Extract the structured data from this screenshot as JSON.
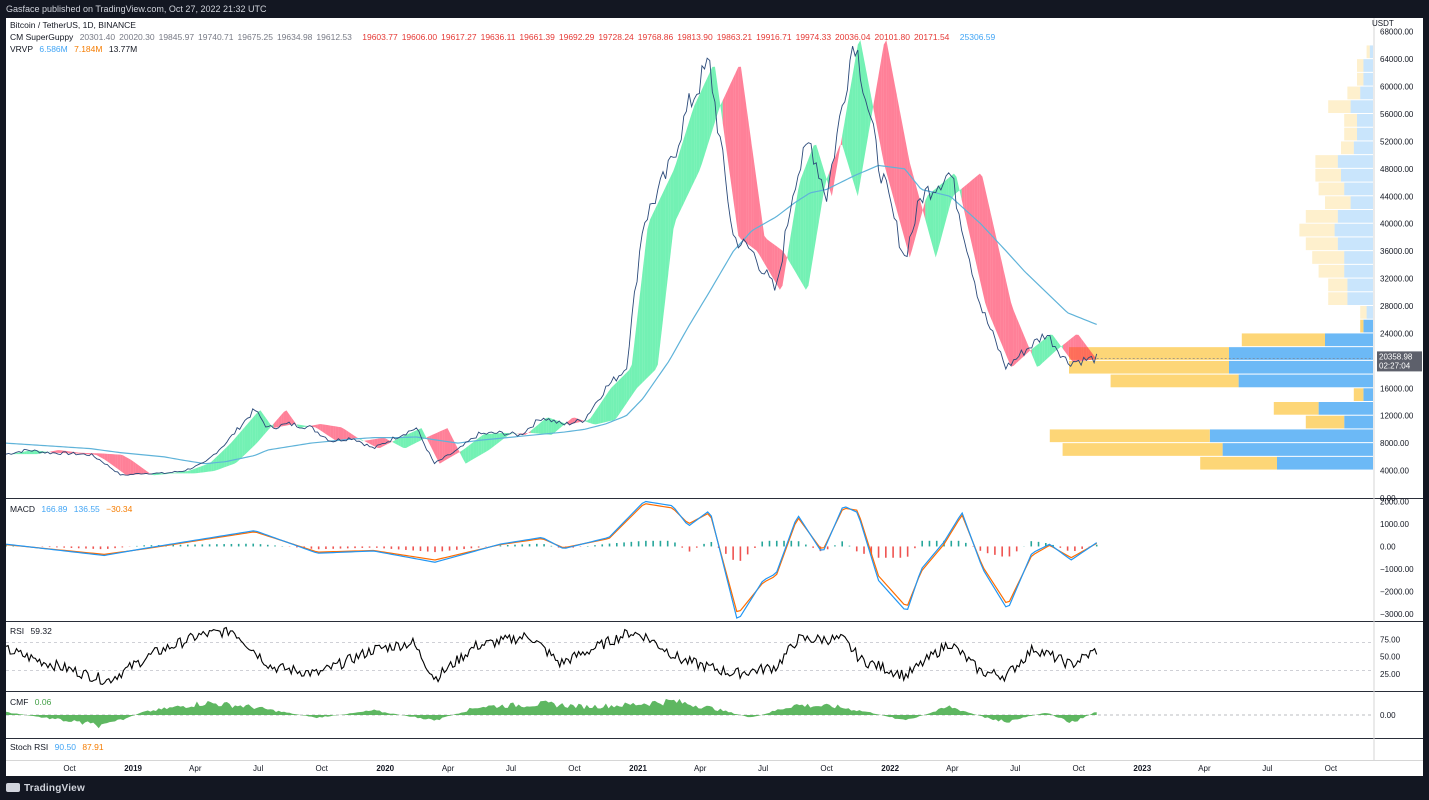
{
  "header": {
    "published": "Gasface published on TradingView.com, Oct 27, 2022 21:32 UTC"
  },
  "footer": {
    "brand": "TradingView"
  },
  "colors": {
    "background": "#131722",
    "price": "#2962ff",
    "ma": "#5fb3d9",
    "guppy_green": "#00e676",
    "guppy_red": "#ff1744",
    "vp_up": "#64b5f6",
    "vp_down": "#fdd470",
    "macd": "#2196f3",
    "signal": "#ff6d00",
    "rsi": "#000000",
    "cmf": "#4caf50"
  },
  "legend": {
    "symbol": "Bitcoin / TetherUS, 1D, BINANCE",
    "guppy_name": "CM SuperGuppy",
    "guppy_values_grey": [
      "20301.40",
      "20020.30",
      "19845.97",
      "19740.71",
      "19675.25",
      "19634.98",
      "19612.53"
    ],
    "guppy_values_red": [
      "19603.77",
      "19606.00",
      "19617.27",
      "19636.11",
      "19661.39",
      "19692.29",
      "19728.24",
      "19768.86",
      "19813.90",
      "19863.21",
      "19916.71",
      "19974.33",
      "20036.04",
      "20101.80",
      "20171.54"
    ],
    "guppy_value_blue": "25306.59",
    "vrvp_name": "VRVP",
    "vrvp_up": "6.586M",
    "vrvp_down": "7.184M",
    "vrvp_total": "13.77M",
    "macd_name": "MACD",
    "macd_v1": "166.89",
    "macd_v2": "136.55",
    "macd_v3": "−30.34",
    "rsi_name": "RSI",
    "rsi_v": "59.32",
    "cmf_name": "CMF",
    "cmf_v": "0.06",
    "stoch_name": "Stoch RSI",
    "stoch_k": "90.50",
    "stoch_d": "87.91"
  },
  "price_axis": {
    "currency": "USDT",
    "labels": [
      "68000.00",
      "64000.00",
      "60000.00",
      "56000.00",
      "52000.00",
      "48000.00",
      "44000.00",
      "40000.00",
      "36000.00",
      "32000.00",
      "28000.00",
      "24000.00",
      "16000.00",
      "12000.00",
      "8000.00",
      "4000.00",
      "0.00"
    ],
    "current_price": "20358.98",
    "countdown": "02:27:04"
  },
  "macd_axis": {
    "labels": [
      "2000.00",
      "1000.00",
      "0.00",
      "−1000.00",
      "−2000.00",
      "−3000.00"
    ]
  },
  "rsi_axis": {
    "labels": [
      "75.00",
      "50.00",
      "25.00"
    ]
  },
  "cmf_axis": {
    "labels": [
      "0.00"
    ]
  },
  "time_axis": {
    "labels": [
      "Oct",
      "2019",
      "Apr",
      "Jul",
      "Oct",
      "2020",
      "Apr",
      "Jul",
      "Oct",
      "2021",
      "Apr",
      "Jul",
      "Oct",
      "2022",
      "Apr",
      "Jul",
      "Oct",
      "2023",
      "Apr",
      "Jul",
      "Oct"
    ]
  },
  "chart_data": {
    "type": "line",
    "title": "Bitcoin / TetherUS, 1D, BINANCE",
    "x_range": [
      "2018-07-01",
      "2023-12-01"
    ],
    "price": {
      "ylim": [
        0,
        70000
      ],
      "dates": [
        "2018-07-01",
        "2018-08-01",
        "2018-09-01",
        "2018-10-01",
        "2018-11-01",
        "2018-11-15",
        "2018-12-15",
        "2019-01-15",
        "2019-02-15",
        "2019-03-15",
        "2019-04-15",
        "2019-05-15",
        "2019-06-26",
        "2019-07-15",
        "2019-08-15",
        "2019-09-15",
        "2019-10-15",
        "2019-11-15",
        "2019-12-15",
        "2020-01-15",
        "2020-02-15",
        "2020-03-12",
        "2020-04-15",
        "2020-05-15",
        "2020-06-15",
        "2020-07-15",
        "2020-08-15",
        "2020-09-15",
        "2020-10-15",
        "2020-11-15",
        "2020-12-15",
        "2021-01-08",
        "2021-02-15",
        "2021-03-15",
        "2021-04-14",
        "2021-05-19",
        "2021-06-15",
        "2021-07-20",
        "2021-08-15",
        "2021-09-07",
        "2021-10-01",
        "2021-11-10",
        "2021-12-15",
        "2022-01-22",
        "2022-02-15",
        "2022-03-29",
        "2022-05-12",
        "2022-06-18",
        "2022-07-15",
        "2022-08-15",
        "2022-09-15",
        "2022-10-27"
      ],
      "close": [
        6400,
        7000,
        6600,
        6500,
        6300,
        5500,
        3300,
        3600,
        3600,
        3950,
        5100,
        8000,
        12900,
        10200,
        10800,
        10300,
        8300,
        8800,
        7200,
        8800,
        10200,
        5000,
        7000,
        9300,
        9500,
        9200,
        11800,
        10700,
        11400,
        16000,
        19000,
        40000,
        48000,
        57000,
        63500,
        38000,
        36000,
        30000,
        46000,
        52000,
        44000,
        67500,
        49000,
        35000,
        44000,
        47500,
        28000,
        19000,
        21500,
        24000,
        19800,
        20358.98
      ],
      "ma200": [
        8000,
        7800,
        7600,
        7400,
        7200,
        7000,
        6600,
        6300,
        6000,
        5500,
        5000,
        5300,
        6200,
        7000,
        7500,
        8000,
        8300,
        8600,
        8800,
        8800,
        8900,
        8500,
        8000,
        8400,
        8700,
        9000,
        9300,
        9600,
        10000,
        10800,
        12000,
        14500,
        20000,
        25000,
        30000,
        36000,
        39000,
        41000,
        43000,
        44500,
        45000,
        47000,
        48500,
        48000,
        45000,
        44000,
        40000,
        36000,
        33000,
        30000,
        27000,
        25306.59
      ]
    },
    "volume_profile": {
      "ranges": [
        [
          0,
          4000
        ],
        [
          4000,
          6000
        ],
        [
          6000,
          8000
        ],
        [
          8000,
          10000
        ],
        [
          10000,
          12000
        ],
        [
          12000,
          14000
        ],
        [
          14000,
          16000
        ],
        [
          16000,
          18000
        ],
        [
          18000,
          20000
        ],
        [
          20000,
          22000
        ],
        [
          22000,
          24000
        ],
        [
          24000,
          26000
        ],
        [
          26000,
          28000
        ],
        [
          28000,
          30000
        ],
        [
          30000,
          32000
        ],
        [
          32000,
          34000
        ],
        [
          34000,
          36000
        ],
        [
          36000,
          38000
        ],
        [
          38000,
          40000
        ],
        [
          40000,
          42000
        ],
        [
          42000,
          44000
        ],
        [
          44000,
          46000
        ],
        [
          46000,
          48000
        ],
        [
          48000,
          50000
        ],
        [
          50000,
          52000
        ],
        [
          52000,
          54000
        ],
        [
          54000,
          56000
        ],
        [
          56000,
          58000
        ],
        [
          58000,
          60000
        ],
        [
          60000,
          62000
        ],
        [
          62000,
          64000
        ],
        [
          64000,
          66000
        ]
      ],
      "up": [
        0,
        0.3,
        0.47,
        0.51,
        0.09,
        0.17,
        0.03,
        0.42,
        0.45,
        0.45,
        0.15,
        0.03,
        0.02,
        0.08,
        0.08,
        0.09,
        0.09,
        0.11,
        0.12,
        0.11,
        0.07,
        0.09,
        0.1,
        0.11,
        0.06,
        0.05,
        0.05,
        0.07,
        0.04,
        0.03,
        0.03,
        0.01
      ],
      "down": [
        0,
        0.24,
        0.5,
        0.5,
        0.12,
        0.14,
        0.03,
        0.4,
        0.5,
        0.5,
        0.26,
        0.01,
        0.02,
        0.06,
        0.06,
        0.08,
        0.1,
        0.1,
        0.11,
        0.1,
        0.08,
        0.08,
        0.08,
        0.07,
        0.04,
        0.04,
        0.04,
        0.07,
        0.04,
        0.02,
        0.02,
        0.01
      ]
    },
    "macd": {
      "ylim": [
        -3300,
        2100
      ],
      "dates": [
        "2018-07-01",
        "2018-11-20",
        "2019-01-15",
        "2019-06-26",
        "2019-09-25",
        "2019-12-15",
        "2020-03-13",
        "2020-06-15",
        "2020-08-15",
        "2020-09-15",
        "2020-11-20",
        "2021-01-10",
        "2021-02-20",
        "2021-03-15",
        "2021-04-15",
        "2021-05-25",
        "2021-07-01",
        "2021-07-20",
        "2021-08-20",
        "2021-09-25",
        "2021-10-25",
        "2021-11-15",
        "2021-12-15",
        "2022-01-25",
        "2022-02-15",
        "2022-03-20",
        "2022-04-15",
        "2022-05-15",
        "2022-06-20",
        "2022-07-25",
        "2022-08-20",
        "2022-09-20",
        "2022-10-27"
      ],
      "macd": [
        100,
        -400,
        -100,
        700,
        -300,
        -200,
        -700,
        100,
        400,
        -100,
        400,
        2000,
        1800,
        900,
        1600,
        -3300,
        -1500,
        -1200,
        1400,
        -300,
        1800,
        1500,
        -1500,
        -2900,
        -1000,
        200,
        1500,
        -1000,
        -2800,
        -300,
        100,
        -600,
        166.89
      ],
      "signal": [
        80,
        -350,
        -120,
        650,
        -250,
        -180,
        -600,
        80,
        350,
        -60,
        350,
        1900,
        1700,
        1000,
        1500,
        -3000,
        -1600,
        -1300,
        1300,
        -200,
        1700,
        1600,
        -1300,
        -2700,
        -1100,
        100,
        1400,
        -900,
        -2600,
        -400,
        50,
        -500,
        136.55
      ]
    },
    "rsi": {
      "ylim": [
        0,
        100
      ],
      "dates": [
        "2018-07-01",
        "2018-08-15",
        "2018-11-25",
        "2019-02-01",
        "2019-04-05",
        "2019-05-25",
        "2019-07-20",
        "2019-09-25",
        "2019-12-15",
        "2020-02-10",
        "2020-03-13",
        "2020-05-10",
        "2020-07-28",
        "2020-09-10",
        "2020-12-20",
        "2021-01-10",
        "2021-03-05",
        "2021-05-20",
        "2021-07-20",
        "2021-08-20",
        "2021-10-25",
        "2021-11-20",
        "2022-01-24",
        "2022-03-28",
        "2022-05-12",
        "2022-06-18",
        "2022-07-28",
        "2022-09-20",
        "2022-10-27"
      ],
      "values": [
        60,
        45,
        15,
        55,
        80,
        88,
        35,
        25,
        60,
        70,
        18,
        65,
        80,
        40,
        85,
        80,
        45,
        25,
        35,
        75,
        75,
        45,
        22,
        70,
        28,
        22,
        62,
        38,
        59.32
      ],
      "levels": [
        70,
        30
      ]
    },
    "cmf": {
      "ylim": [
        -0.35,
        0.35
      ],
      "dates": [
        "2018-07-01",
        "2018-11-20",
        "2019-01-15",
        "2019-04-15",
        "2019-06-20",
        "2019-09-25",
        "2019-12-15",
        "2020-03-13",
        "2020-05-15",
        "2020-08-20",
        "2020-10-15",
        "2020-12-15",
        "2021-01-20",
        "2021-02-20",
        "2021-04-20",
        "2021-06-15",
        "2021-08-15",
        "2021-10-15",
        "2021-12-01",
        "2022-01-25",
        "2022-03-28",
        "2022-05-20",
        "2022-06-20",
        "2022-08-15",
        "2022-09-20",
        "2022-10-27"
      ],
      "values": [
        0.05,
        -0.2,
        0.05,
        0.22,
        0.15,
        -0.05,
        0.08,
        -0.1,
        0.15,
        0.2,
        0.15,
        0.18,
        0.22,
        0.25,
        0.12,
        -0.05,
        0.18,
        0.15,
        0.05,
        -0.1,
        0.15,
        -0.05,
        -0.12,
        0.05,
        -0.15,
        0.06
      ]
    },
    "stoch_rsi": {
      "k": 90.5,
      "d": 87.91
    }
  }
}
